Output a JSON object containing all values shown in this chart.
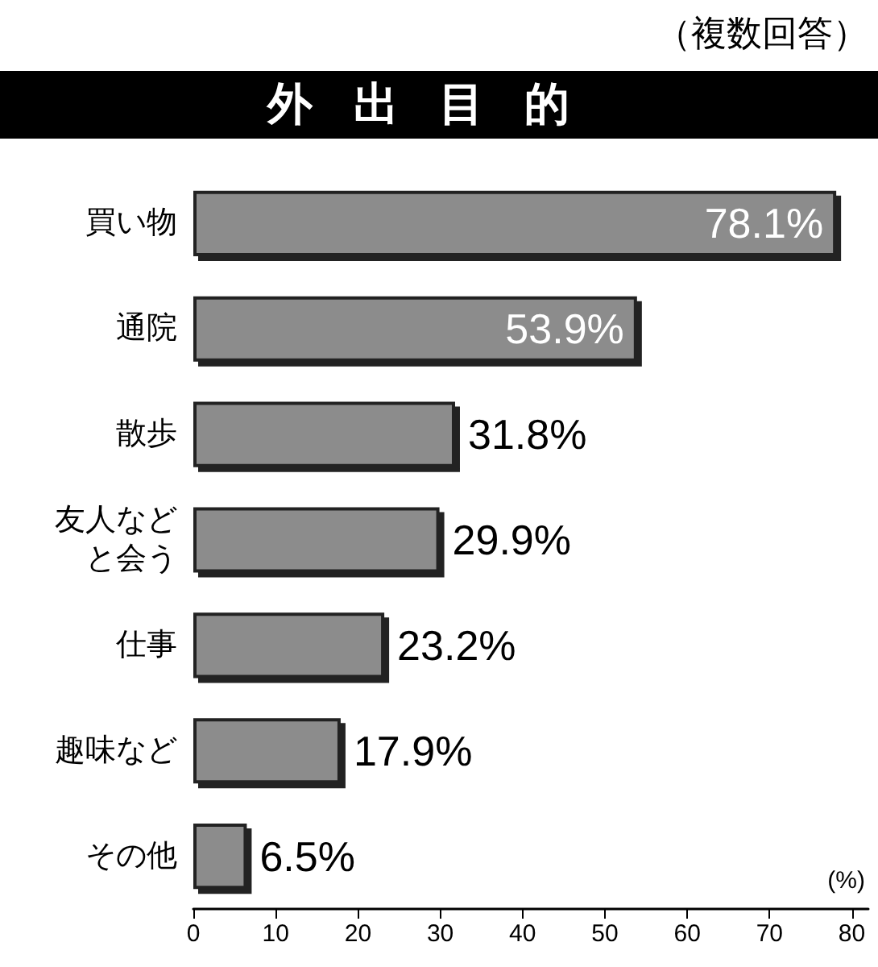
{
  "chart_data": {
    "type": "bar",
    "orientation": "horizontal",
    "title": "外出目的",
    "subtitle": "（複数回答）",
    "xlabel": "(%)",
    "categories": [
      "買い物",
      "通院",
      "散歩",
      "友人などと会う",
      "仕事",
      "趣味など",
      "その他"
    ],
    "values": [
      78.1,
      53.9,
      31.8,
      29.9,
      23.2,
      17.9,
      6.5
    ],
    "value_labels": [
      "78.1%",
      "53.9%",
      "31.8%",
      "29.9%",
      "23.2%",
      "17.9%",
      "6.5%"
    ],
    "color": "#8c8c8c",
    "xlim": [
      0,
      82
    ],
    "xticks": [
      0,
      10,
      20,
      30,
      40,
      50,
      60,
      70,
      80
    ],
    "grid": false
  }
}
